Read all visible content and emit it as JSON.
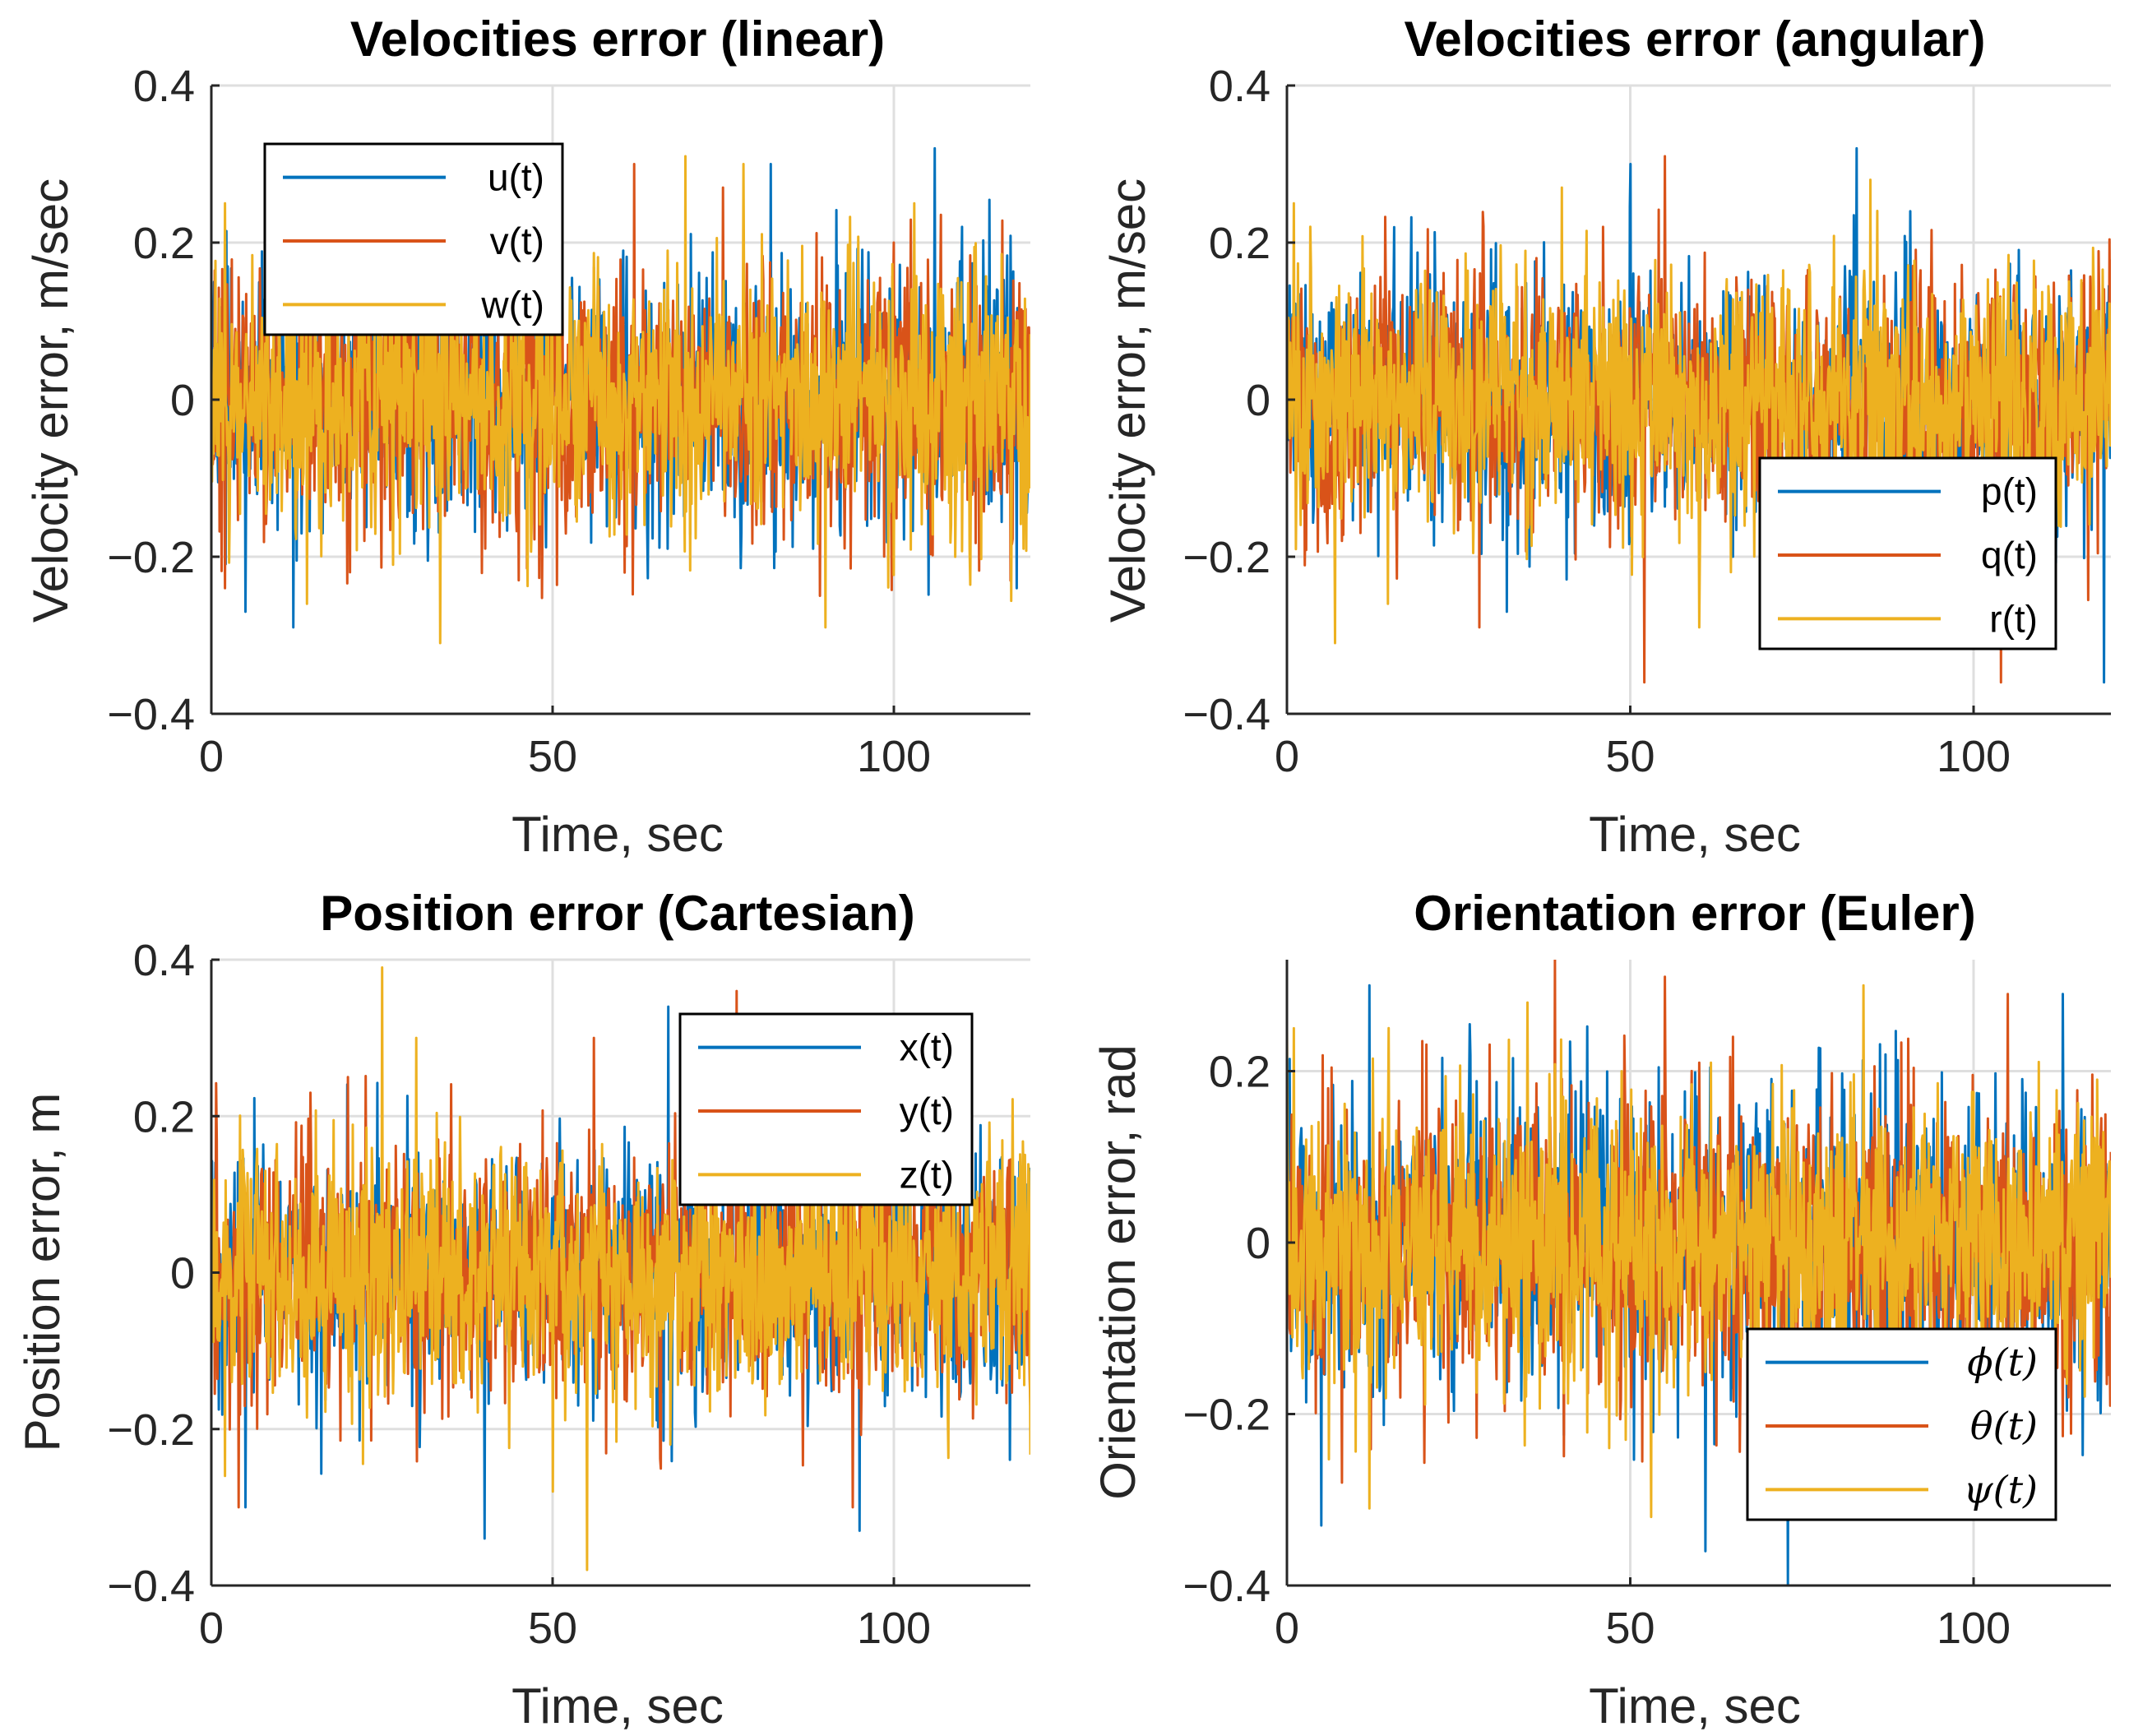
{
  "chart_data": [
    {
      "type": "line",
      "title": "Velocities error (linear)",
      "xlabel": "Time, sec",
      "ylabel": "Velocity error, m/sec",
      "xlim": [
        0,
        120
      ],
      "ylim": [
        -0.4,
        0.4
      ],
      "xticks": [
        0,
        50,
        100
      ],
      "yticks": [
        -0.4,
        -0.2,
        0,
        0.2,
        0.4
      ],
      "yticklabels": [
        "−0.4",
        "−0.2",
        "0",
        "0.2",
        "0.4"
      ],
      "grid": true,
      "legend_position": "top-left",
      "noise_std": 0.08,
      "series": [
        {
          "name": "u(t)",
          "color": "#0072BD",
          "peaks": [
            [
              0.4,
              0.15
            ],
            [
              12,
              -0.29
            ],
            [
              82,
              0.3
            ],
            [
              106,
              0.32
            ],
            [
              110,
              0.22
            ],
            [
              118,
              -0.24
            ],
            [
              5,
              -0.27
            ]
          ]
        },
        {
          "name": "v(t)",
          "color": "#D95319",
          "peaks": [
            [
              2,
              -0.24
            ],
            [
              62,
              0.3
            ],
            [
              75,
              0.27
            ],
            [
              38,
              0.22
            ],
            [
              100,
              0.2
            ],
            [
              45,
              -0.23
            ]
          ]
        },
        {
          "name": "w(t)",
          "color": "#EDB120",
          "peaks": [
            [
              2,
              0.25
            ],
            [
              33.5,
              -0.31
            ],
            [
              69.5,
              0.31
            ],
            [
              78,
              0.3
            ],
            [
              90,
              -0.29
            ],
            [
              14,
              -0.26
            ],
            [
              103,
              0.25
            ]
          ]
        }
      ]
    },
    {
      "type": "line",
      "title": "Velocities error (angular)",
      "xlabel": "Time, sec",
      "ylabel": "Velocity error, m/sec",
      "xlim": [
        0,
        120
      ],
      "ylim": [
        -0.4,
        0.4
      ],
      "xticks": [
        0,
        50,
        100
      ],
      "yticks": [
        -0.4,
        -0.2,
        0,
        0.2,
        0.4
      ],
      "yticklabels": [
        "−0.4",
        "−0.2",
        "0",
        "0.2",
        "0.4"
      ],
      "grid": true,
      "legend_position": "bottom-right",
      "noise_std": 0.08,
      "series": [
        {
          "name": "p(t)",
          "color": "#0072BD",
          "peaks": [
            [
              50,
              0.3
            ],
            [
              83,
              0.32
            ],
            [
              119,
              -0.36
            ],
            [
              32,
              -0.27
            ],
            [
              65,
              -0.2
            ]
          ]
        },
        {
          "name": "q(t)",
          "color": "#D95319",
          "peaks": [
            [
              52,
              -0.36
            ],
            [
              104,
              -0.36
            ],
            [
              55,
              0.31
            ],
            [
              46,
              0.22
            ],
            [
              28,
              -0.29
            ]
          ]
        },
        {
          "name": "r(t)",
          "color": "#EDB120",
          "peaks": [
            [
              1,
              0.25
            ],
            [
              7,
              -0.31
            ],
            [
              40,
              0.27
            ],
            [
              60,
              -0.29
            ],
            [
              75,
              -0.31
            ],
            [
              85,
              0.28
            ]
          ]
        }
      ]
    },
    {
      "type": "line",
      "title": "Position error (Cartesian)",
      "xlabel": "Time, sec",
      "ylabel": "Position error, m",
      "xlim": [
        0,
        120
      ],
      "ylim": [
        -0.4,
        0.4
      ],
      "xticks": [
        0,
        50,
        100
      ],
      "yticks": [
        -0.4,
        -0.2,
        0,
        0.2,
        0.4
      ],
      "yticklabels": [
        "−0.4",
        "−0.2",
        "0",
        "0.2",
        "0.4"
      ],
      "grid": true,
      "legend_position": "top-right",
      "noise_std": 0.08,
      "series": [
        {
          "name": "x(t)",
          "color": "#0072BD",
          "peaks": [
            [
              40,
              -0.34
            ],
            [
              67,
              0.34
            ],
            [
              5,
              -0.3
            ],
            [
              95,
              -0.33
            ],
            [
              106,
              0.28
            ]
          ]
        },
        {
          "name": "y(t)",
          "color": "#D95319",
          "peaks": [
            [
              77,
              0.36
            ],
            [
              56,
              0.3
            ],
            [
              4,
              -0.3
            ],
            [
              94,
              -0.3
            ],
            [
              20,
              0.25
            ]
          ]
        },
        {
          "name": "z(t)",
          "color": "#EDB120",
          "peaks": [
            [
              25,
              0.39
            ],
            [
              55,
              -0.38
            ],
            [
              50,
              -0.28
            ],
            [
              2,
              -0.26
            ],
            [
              30,
              0.3
            ]
          ]
        }
      ]
    },
    {
      "type": "line",
      "title": "Orientation error (Euler)",
      "xlabel": "Time, sec",
      "ylabel": "Orientation error, rad",
      "xlim": [
        0,
        120
      ],
      "ylim": [
        -0.4,
        0.33
      ],
      "xticks": [
        0,
        50,
        100
      ],
      "yticks": [
        -0.4,
        -0.2,
        0,
        0.2
      ],
      "yticklabels": [
        "−0.4",
        "−0.2",
        "0",
        "0.2"
      ],
      "grid": true,
      "legend_position": "bottom-right",
      "noise_std": 0.085,
      "series": [
        {
          "name": "ϕ(t)",
          "color": "#0072BD",
          "peaks": [
            [
              73,
              -0.4
            ],
            [
              61,
              -0.36
            ],
            [
              12,
              0.3
            ],
            [
              113,
              0.29
            ],
            [
              5,
              -0.33
            ]
          ]
        },
        {
          "name": "θ(t)",
          "color": "#D95319",
          "peaks": [
            [
              39,
              0.33
            ],
            [
              55,
              0.31
            ],
            [
              105,
              0.29
            ],
            [
              65,
              0.24
            ],
            [
              8,
              -0.28
            ]
          ]
        },
        {
          "name": "ψ(t)",
          "color": "#EDB120",
          "peaks": [
            [
              1,
              0.25
            ],
            [
              53,
              -0.32
            ],
            [
              12,
              -0.31
            ],
            [
              84,
              0.3
            ],
            [
              35,
              0.28
            ]
          ]
        }
      ]
    }
  ]
}
